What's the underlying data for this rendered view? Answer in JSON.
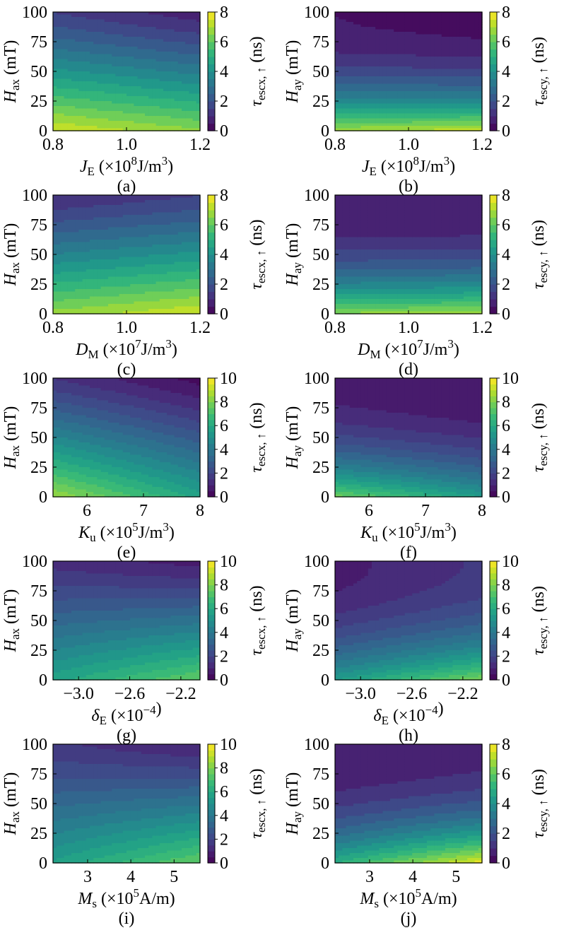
{
  "chart_data": [
    {
      "id": "a",
      "letter": "(a)",
      "type": "heatmap",
      "kind": "x",
      "xlabel": {
        "sym": "J",
        "sub": "E",
        "pre": " (×10",
        "sup": "8",
        "post": "J/m",
        "sup2": "3",
        "end": ")"
      },
      "xlim": [
        0.8,
        1.2
      ],
      "xticks": [
        "0.8",
        "1.0",
        "1.2"
      ],
      "ylabel": {
        "sym": "H",
        "sub": "ax",
        "post": " (mT)"
      },
      "ylim": [
        0,
        100
      ],
      "yticks": [
        "0",
        "25",
        "50",
        "75",
        "100"
      ],
      "cbar": {
        "sym": "τ",
        "sub": "escx, ↑",
        "post": " (ns)",
        "ticks": [
          "0",
          "2",
          "4",
          "6",
          "8"
        ],
        "max": 8
      },
      "z_corners": {
        "y0_xmin": 7.5,
        "y0_xmax": 6.6,
        "y100_xmin": 1.5,
        "y100_xmax": 0.7
      }
    },
    {
      "id": "b",
      "letter": "(b)",
      "type": "heatmap",
      "kind": "y",
      "xlabel": {
        "sym": "J",
        "sub": "E",
        "pre": " (×10",
        "sup": "8",
        "post": "J/m",
        "sup2": "3",
        "end": ")"
      },
      "xlim": [
        0.8,
        1.2
      ],
      "xticks": [
        "0.8",
        "1.0",
        "1.2"
      ],
      "ylabel": {
        "sym": "H",
        "sub": "ay",
        "post": " (mT)"
      },
      "ylim": [
        0,
        100
      ],
      "yticks": [
        "0",
        "25",
        "50",
        "75",
        "100"
      ],
      "cbar": {
        "sym": "τ",
        "sub": "escy, ↑",
        "post": " (ns)",
        "ticks": [
          "0",
          "2",
          "4",
          "6",
          "8"
        ],
        "max": 8
      },
      "z_corners": {
        "y0_xmin": 6.9,
        "y0_xmax": 7.3,
        "y100_xmin": 0.5,
        "y100_xmax": 0.3
      }
    },
    {
      "id": "c",
      "letter": "(c)",
      "type": "heatmap",
      "kind": "x",
      "xlabel": {
        "sym": "D",
        "sub": "M",
        "pre": " (×10",
        "sup": "7",
        "post": "J/m",
        "sup2": "3",
        "end": ")"
      },
      "xlim": [
        0.8,
        1.2
      ],
      "xticks": [
        "0.8",
        "1.0",
        "1.2"
      ],
      "ylabel": {
        "sym": "H",
        "sub": "ax",
        "post": " (mT)"
      },
      "ylim": [
        0,
        100
      ],
      "yticks": [
        "0",
        "25",
        "50",
        "75",
        "100"
      ],
      "cbar": {
        "sym": "τ",
        "sub": "escx, ↑",
        "post": " (ns)",
        "ticks": [
          "0",
          "2",
          "4",
          "6",
          "8"
        ],
        "max": 8
      },
      "z_corners": {
        "y0_xmin": 6.7,
        "y0_xmax": 7.5,
        "y100_xmin": 1.0,
        "y100_xmax": 1.5
      }
    },
    {
      "id": "d",
      "letter": "(d)",
      "type": "heatmap",
      "kind": "y",
      "xlabel": {
        "sym": "D",
        "sub": "M",
        "pre": " (×10",
        "sup": "7",
        "post": "J/m",
        "sup2": "3",
        "end": ")"
      },
      "xlim": [
        0.8,
        1.2
      ],
      "xticks": [
        "0.8",
        "1.0",
        "1.2"
      ],
      "ylabel": {
        "sym": "H",
        "sub": "ay",
        "post": " (mT)"
      },
      "ylim": [
        0,
        100
      ],
      "yticks": [
        "0",
        "25",
        "50",
        "75",
        "100"
      ],
      "cbar": {
        "sym": "τ",
        "sub": "escy, ↑",
        "post": " (ns)",
        "ticks": [
          "0",
          "2",
          "4",
          "6",
          "8"
        ],
        "max": 8
      },
      "z_corners": {
        "y0_xmin": 6.6,
        "y0_xmax": 6.9,
        "y100_xmin": 0.5,
        "y100_xmax": 0.5
      }
    },
    {
      "id": "e",
      "letter": "(e)",
      "type": "heatmap",
      "kind": "x",
      "xlabel": {
        "sym": "K",
        "sub": "u",
        "pre": " (×10",
        "sup": "5",
        "post": "J/m",
        "sup2": "3",
        "end": ")"
      },
      "xlim": [
        5.4,
        8.0
      ],
      "xticks": [
        "6",
        "7",
        "8"
      ],
      "xtick_values": [
        6,
        7,
        8
      ],
      "ylabel": {
        "sym": "H",
        "sub": "ax",
        "post": " (mT)"
      },
      "ylim": [
        0,
        100
      ],
      "yticks": [
        "0",
        "25",
        "50",
        "75",
        "100"
      ],
      "cbar": {
        "sym": "τ",
        "sub": "escx, ↑",
        "post": " (ns)",
        "ticks": [
          "0",
          "2",
          "4",
          "6",
          "8",
          "10"
        ],
        "max": 10
      },
      "z_corners": {
        "y0_xmin": 8.5,
        "y0_xmax": 5.8,
        "y100_xmin": 1.5,
        "y100_xmax": 0.3
      }
    },
    {
      "id": "f",
      "letter": "(f)",
      "type": "heatmap",
      "kind": "y",
      "xlabel": {
        "sym": "K",
        "sub": "u",
        "pre": " (×10",
        "sup": "5",
        "post": "J/m",
        "sup2": "3",
        "end": ")"
      },
      "xlim": [
        5.4,
        8.0
      ],
      "xticks": [
        "6",
        "7",
        "8"
      ],
      "xtick_values": [
        6,
        7,
        8
      ],
      "ylabel": {
        "sym": "H",
        "sub": "ay",
        "post": " (mT)"
      },
      "ylim": [
        0,
        100
      ],
      "yticks": [
        "0",
        "25",
        "50",
        "75",
        "100"
      ],
      "cbar": {
        "sym": "τ",
        "sub": "escy, ↑",
        "post": " (ns)",
        "ticks": [
          "0",
          "2",
          "4",
          "6",
          "8",
          "10"
        ],
        "max": 10
      },
      "z_corners": {
        "y0_xmin": 7.8,
        "y0_xmax": 5.5,
        "y100_xmin": 0.8,
        "y100_xmax": 0.5
      }
    },
    {
      "id": "g",
      "letter": "(g)",
      "type": "heatmap",
      "kind": "x",
      "xlabel": {
        "sym": "δ",
        "sub": "E",
        "pre": " (×10",
        "sup": "−4",
        "post": "",
        "sup2": "",
        "end": ")"
      },
      "xlim": [
        -3.2,
        -2.05
      ],
      "xticks": [
        "−3.0",
        "−2.6",
        "−2.2"
      ],
      "xtick_values": [
        -3.0,
        -2.6,
        -2.2
      ],
      "ylabel": {
        "sym": "H",
        "sub": "ax",
        "post": " (mT)"
      },
      "ylim": [
        0,
        100
      ],
      "yticks": [
        "0",
        "25",
        "50",
        "75",
        "100"
      ],
      "cbar": {
        "sym": "τ",
        "sub": "escx, ↑",
        "post": " (ns)",
        "ticks": [
          "0",
          "2",
          "4",
          "6",
          "8",
          "10"
        ],
        "max": 10
      },
      "z_corners": {
        "y0_xmin": 5.8,
        "y0_xmax": 7.6,
        "y100_xmin": 1.3,
        "y100_xmax": 0.8
      }
    },
    {
      "id": "h",
      "letter": "(h)",
      "type": "heatmap",
      "kind": "y",
      "xlabel": {
        "sym": "δ",
        "sub": "E",
        "pre": " (×10",
        "sup": "−4",
        "post": "",
        "sup2": "",
        "end": ")"
      },
      "xlim": [
        -3.2,
        -2.05
      ],
      "xticks": [
        "−3.0",
        "−2.6",
        "−2.2"
      ],
      "xtick_values": [
        -3.0,
        -2.6,
        -2.2
      ],
      "ylabel": {
        "sym": "H",
        "sub": "ay",
        "post": " (mT)"
      },
      "ylim": [
        0,
        100
      ],
      "yticks": [
        "0",
        "25",
        "50",
        "75",
        "100"
      ],
      "cbar": {
        "sym": "τ",
        "sub": "escy, ↑",
        "post": " (ns)",
        "ticks": [
          "0",
          "2",
          "4",
          "6",
          "8",
          "10"
        ],
        "max": 10
      },
      "z_corners": {
        "y0_xmin": 5.5,
        "y0_xmax": 8.0,
        "y100_xmin": 0.8,
        "y100_xmax": 1.6
      }
    },
    {
      "id": "i",
      "letter": "(i)",
      "type": "heatmap",
      "kind": "x",
      "xlabel": {
        "sym": "M",
        "sub": "s",
        "pre": " (×10",
        "sup": "5",
        "post": "A/m",
        "sup2": "",
        "end": ")"
      },
      "xlim": [
        2.2,
        5.6
      ],
      "xticks": [
        "3",
        "4",
        "5"
      ],
      "xtick_values": [
        3,
        4,
        5
      ],
      "ylabel": {
        "sym": "H",
        "sub": "ax",
        "post": " (mT)"
      },
      "ylim": [
        0,
        100
      ],
      "yticks": [
        "0",
        "25",
        "50",
        "75",
        "100"
      ],
      "cbar": {
        "sym": "τ",
        "sub": "escx, ↑",
        "post": " (ns)",
        "ticks": [
          "0",
          "2",
          "4",
          "6",
          "8",
          "10"
        ],
        "max": 10
      },
      "z_corners": {
        "y0_xmin": 5.6,
        "y0_xmax": 7.6,
        "y100_xmin": 1.6,
        "y100_xmax": 1.0
      }
    },
    {
      "id": "j",
      "letter": "(j)",
      "type": "heatmap",
      "kind": "y",
      "xlabel": {
        "sym": "M",
        "sub": "s",
        "pre": " (×10",
        "sup": "5",
        "post": "A/m",
        "sup2": "",
        "end": ")"
      },
      "xlim": [
        2.2,
        5.6
      ],
      "xticks": [
        "3",
        "4",
        "5"
      ],
      "xtick_values": [
        3,
        4,
        5
      ],
      "ylabel": {
        "sym": "H",
        "sub": "ay",
        "post": " (mT)"
      },
      "ylim": [
        0,
        100
      ],
      "yticks": [
        "0",
        "25",
        "50",
        "75",
        "100"
      ],
      "cbar": {
        "sym": "τ",
        "sub": "escy, ↑",
        "post": " (ns)",
        "ticks": [
          "0",
          "2",
          "4",
          "6",
          "8"
        ],
        "max": 8
      },
      "z_corners": {
        "y0_xmin": 5.0,
        "y0_xmax": 7.8,
        "y100_xmin": 0.5,
        "y100_xmax": 0.8
      }
    }
  ]
}
